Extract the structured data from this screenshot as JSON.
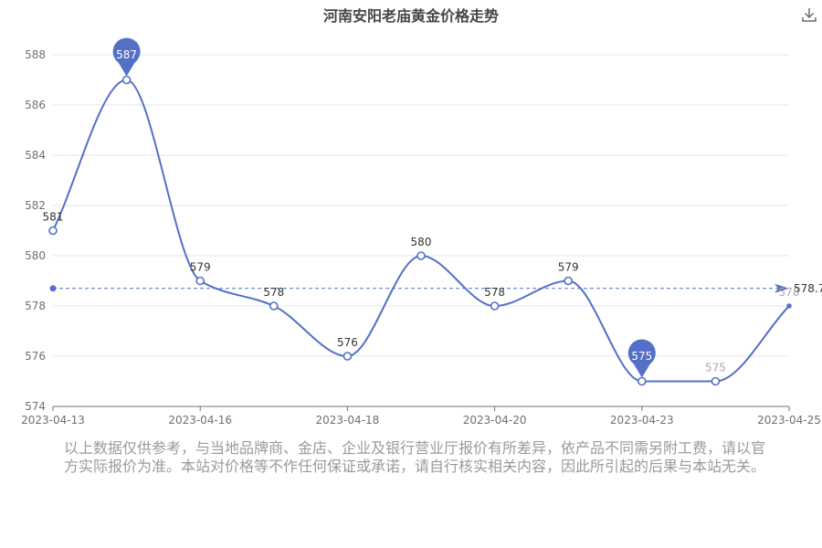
{
  "title": "河南安阳老庙黄金价格走势",
  "toolbar": {
    "download_icon": "download-icon"
  },
  "chart_data": {
    "type": "line",
    "title": "河南安阳老庙黄金价格走势",
    "x": [
      "2023-04-13",
      "2023-04-14",
      "2023-04-16",
      "2023-04-17",
      "2023-04-18",
      "2023-04-19",
      "2023-04-20",
      "2023-04-21",
      "2023-04-23",
      "2023-04-24",
      "2023-04-25"
    ],
    "x_tick_labels": [
      "2023-04-13",
      "2023-04-16",
      "2023-04-18",
      "2023-04-20",
      "2023-04-23",
      "2023-04-25"
    ],
    "series": [
      {
        "values": [
          581,
          587,
          579,
          578,
          576,
          580,
          578,
          579,
          575,
          575,
          578
        ],
        "color": "#5470c6",
        "smooth": true
      }
    ],
    "ylim": [
      574,
      588
    ],
    "y_ticks": [
      574,
      576,
      578,
      580,
      582,
      584,
      586,
      588
    ],
    "grid": true,
    "mark_points": [
      {
        "type": "max",
        "label": "587",
        "index": 1
      },
      {
        "type": "min",
        "label": "575",
        "index": 8
      }
    ],
    "mark_line": {
      "type": "average",
      "value": 578.7,
      "label": "578.7"
    },
    "xlabel": "",
    "ylabel": ""
  },
  "disclaimer": "以上数据仅供参考，与当地品牌商、金店、企业及银行营业厅报价有所差异，依产品不同需另附工费，请以官方实际报价为准。本站对价格等不作任何保证或承诺，请自行核实相关内容，因此所引起的后果与本站无关。"
}
